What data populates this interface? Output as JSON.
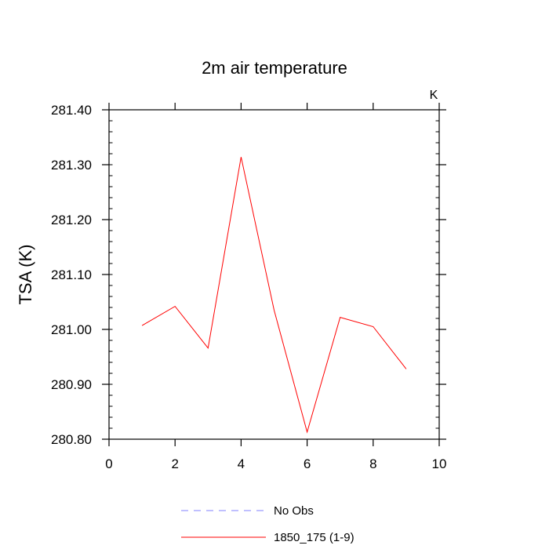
{
  "chart_data": {
    "type": "line",
    "title": "2m air temperature",
    "ylabel": "TSA  (K)",
    "units_label": "K",
    "xlim": [
      0,
      10
    ],
    "ylim": [
      280.8,
      281.4
    ],
    "x_ticks": [
      0,
      2,
      4,
      6,
      8,
      10
    ],
    "x_tick_labels": [
      "0",
      "2",
      "4",
      "6",
      "8",
      "10"
    ],
    "y_ticks": [
      280.8,
      280.9,
      281.0,
      281.1,
      281.2,
      281.3,
      281.4
    ],
    "y_tick_labels": [
      "280.80",
      "280.90",
      "281.00",
      "281.10",
      "281.20",
      "281.30",
      "281.40"
    ],
    "grid": false,
    "legend_position": "bottom",
    "series": [
      {
        "name": "No Obs",
        "color": "#8080ff",
        "dashed": true,
        "x": [],
        "y": []
      },
      {
        "name": "1850_175 (1-9)",
        "color": "#ff0000",
        "dashed": false,
        "x": [
          1,
          2,
          3,
          4,
          5,
          6,
          7,
          8,
          9
        ],
        "y": [
          281.007,
          281.042,
          280.966,
          281.314,
          281.035,
          280.813,
          281.022,
          281.005,
          280.928
        ]
      }
    ]
  }
}
